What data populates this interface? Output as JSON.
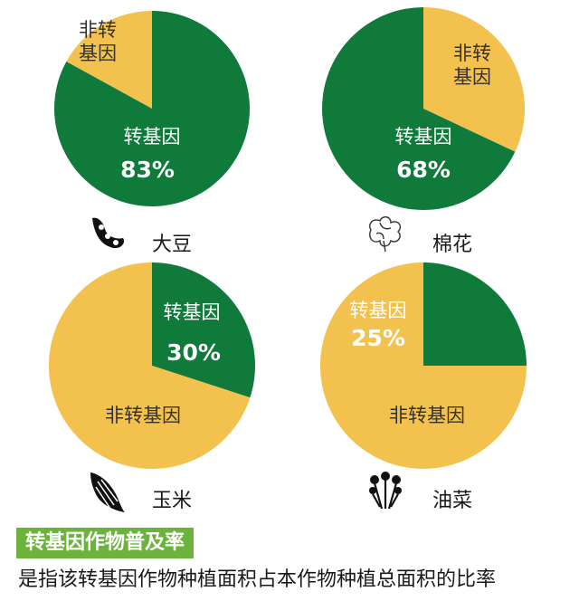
{
  "colors": {
    "gm": "#0f7a3a",
    "non_gm": "#f2c14e",
    "badge": "#6bb33c"
  },
  "chart_data": [
    {
      "type": "pie",
      "crop": "大豆",
      "icon": "soybean-icon",
      "slices": [
        {
          "name": "转基因",
          "value": 83,
          "label": "83%"
        },
        {
          "name": "非转基因",
          "value": 17
        }
      ]
    },
    {
      "type": "pie",
      "crop": "棉花",
      "icon": "cotton-icon",
      "slices": [
        {
          "name": "转基因",
          "value": 68,
          "label": "68%"
        },
        {
          "name": "非转基因",
          "value": 32
        }
      ]
    },
    {
      "type": "pie",
      "crop": "玉米",
      "icon": "corn-icon",
      "slices": [
        {
          "name": "转基因",
          "value": 30,
          "label": "30%"
        },
        {
          "name": "非转基因",
          "value": 70
        }
      ]
    },
    {
      "type": "pie",
      "crop": "油菜",
      "icon": "rapeseed-icon",
      "slices": [
        {
          "name": "转基因",
          "value": 25,
          "label": "25%"
        },
        {
          "name": "非转基因",
          "value": 75
        }
      ]
    }
  ],
  "footer": {
    "badge": "转基因作物普及率",
    "description": "是指该转基因作物种植面积占本作物种植总面积的比率"
  }
}
